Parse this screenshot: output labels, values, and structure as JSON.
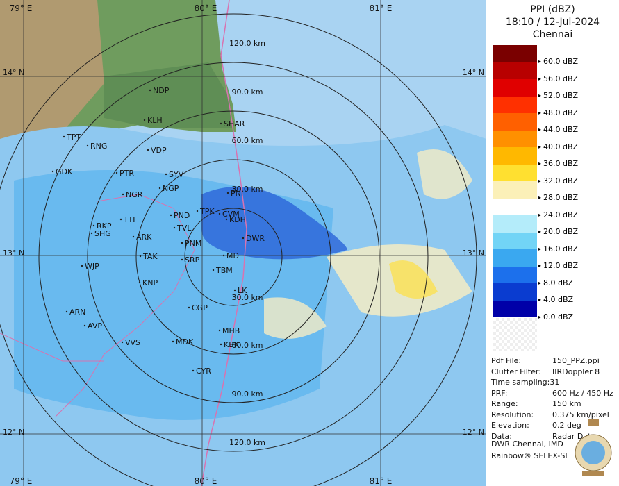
{
  "header": {
    "product": "PPI (dBZ)",
    "datetime": "18:10 / 12-Jul-2024",
    "station": "Chennai"
  },
  "legend": [
    {
      "label": "60.0 dBZ",
      "color": "#7a0000"
    },
    {
      "label": "56.0 dBZ",
      "color": "#b80000"
    },
    {
      "label": "52.0 dBZ",
      "color": "#e00000"
    },
    {
      "label": "48.0 dBZ",
      "color": "#ff3000"
    },
    {
      "label": "44.0 dBZ",
      "color": "#ff6000"
    },
    {
      "label": "40.0 dBZ",
      "color": "#ff9000"
    },
    {
      "label": "36.0 dBZ",
      "color": "#ffb800"
    },
    {
      "label": "32.0 dBZ",
      "color": "#ffe030"
    },
    {
      "label": "28.0 dBZ",
      "color": "#fbf0b8"
    },
    {
      "label": "24.0 dBZ",
      "color": "#ffffff"
    },
    {
      "label": "20.0 dBZ",
      "color": "#b4ecfa"
    },
    {
      "label": "16.0 dBZ",
      "color": "#72d4f6"
    },
    {
      "label": "12.0 dBZ",
      "color": "#3aa8f0"
    },
    {
      "label": "8.0 dBZ",
      "color": "#1c70ec"
    },
    {
      "label": "4.0 dBZ",
      "color": "#0a3cd0"
    },
    {
      "label": "0.0 dBZ",
      "color": "#0000a8"
    }
  ],
  "info": [
    {
      "key": "Pdf File:",
      "value": "150_PPZ.ppi"
    },
    {
      "key": "Clutter Filter:",
      "value": "IIRDoppler 8"
    },
    {
      "key": "Time sampling:31"
    },
    {
      "key": "PRF:",
      "value": "600 Hz / 450 Hz"
    },
    {
      "key": "Range:",
      "value": "150 km"
    },
    {
      "key": "Resolution:",
      "value": "0.375 km/pixel"
    },
    {
      "key": "Elevation:",
      "value": "0.2 deg"
    },
    {
      "key": "Data:",
      "value": "Radar Data"
    }
  ],
  "credits": [
    "DWR Chennai, IMD",
    "Rainbow® SELEX-SI"
  ],
  "map": {
    "lon_labels": [
      "79° E",
      "80° E",
      "81° E",
      "79° E",
      "80° E",
      "81° E"
    ],
    "lat_labels": [
      "14° N",
      "14° N",
      "13° N",
      "13° N",
      "12° N",
      "12° N"
    ],
    "range_labels": [
      "120.0 km",
      "90.0 km",
      "60.0 km",
      "30.0 km",
      "30.0 km",
      "60.0 km",
      "90.0 km",
      "120.0 km"
    ],
    "places": [
      "NDP",
      "KLH",
      "SHAR",
      "TPT",
      "RNG",
      "VDP",
      "GDK",
      "PTR",
      "SYV",
      "NGP",
      "NGR",
      "PNI",
      "TTI",
      "PND",
      "TPK",
      "CVM",
      "KDH",
      "RKP",
      "SHG",
      "TVL",
      "ARK",
      "PNM",
      "DWR",
      "TAK",
      "SRP",
      "MD",
      "WJP",
      "TBM",
      "KNP",
      "LK",
      "CGP",
      "ARN",
      "AVP",
      "MHB",
      "VVS",
      "MDK",
      "KBK",
      "CYR"
    ]
  }
}
